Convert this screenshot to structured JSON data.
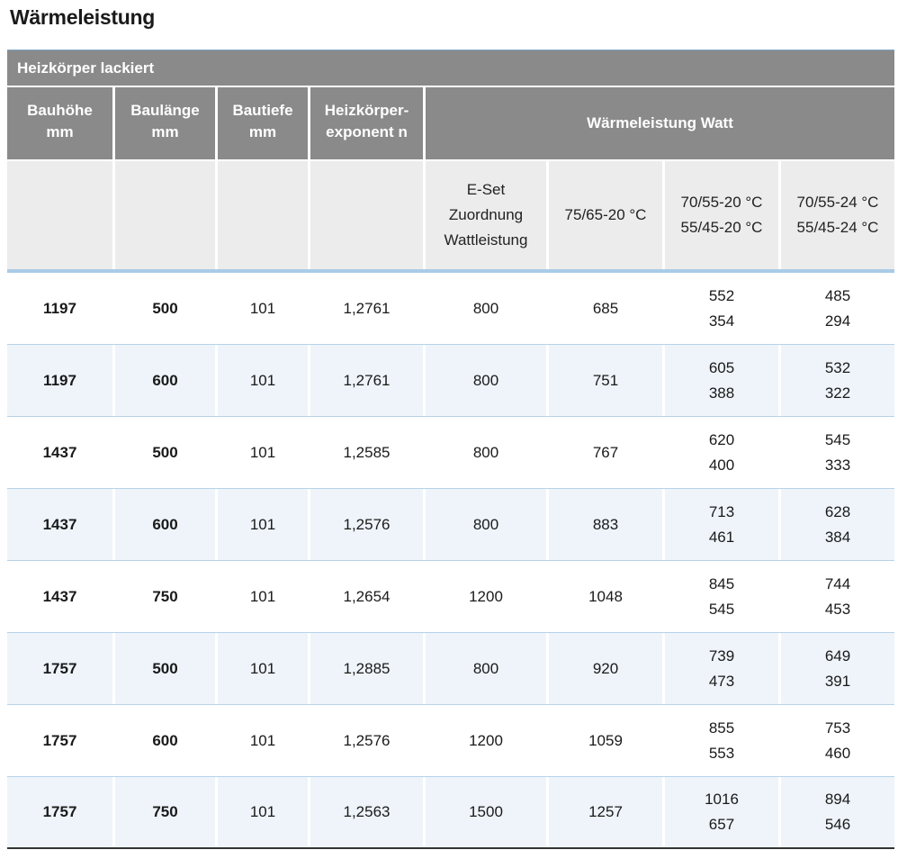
{
  "title": "Wärmeleistung",
  "section": "Heizkörper lackiert",
  "headers": {
    "bauhoehe": [
      "Bauhöhe",
      "mm"
    ],
    "baulaenge": [
      "Baulänge",
      "mm"
    ],
    "bautiefe": [
      "Bautiefe",
      "mm"
    ],
    "exponent": [
      "Heizkörper-",
      "exponent n"
    ],
    "waermeleistung": "Wärmeleistung Watt"
  },
  "subheaders": {
    "eset": [
      "E-Set",
      "Zuordnung",
      "Wattleistung"
    ],
    "t75": "75/65-20 °C",
    "t70_20": [
      "70/55-20 °C",
      "55/45-20 °C"
    ],
    "t70_24": [
      "70/55-24 °C",
      "55/45-24 °C"
    ]
  },
  "rows": [
    {
      "h": "1197",
      "l": "500",
      "t": "101",
      "n": "1,2761",
      "e": "800",
      "w75": "685",
      "w20": [
        "552",
        "354"
      ],
      "w24": [
        "485",
        "294"
      ]
    },
    {
      "h": "1197",
      "l": "600",
      "t": "101",
      "n": "1,2761",
      "e": "800",
      "w75": "751",
      "w20": [
        "605",
        "388"
      ],
      "w24": [
        "532",
        "322"
      ]
    },
    {
      "h": "1437",
      "l": "500",
      "t": "101",
      "n": "1,2585",
      "e": "800",
      "w75": "767",
      "w20": [
        "620",
        "400"
      ],
      "w24": [
        "545",
        "333"
      ]
    },
    {
      "h": "1437",
      "l": "600",
      "t": "101",
      "n": "1,2576",
      "e": "800",
      "w75": "883",
      "w20": [
        "713",
        "461"
      ],
      "w24": [
        "628",
        "384"
      ]
    },
    {
      "h": "1437",
      "l": "750",
      "t": "101",
      "n": "1,2654",
      "e": "1200",
      "w75": "1048",
      "w20": [
        "845",
        "545"
      ],
      "w24": [
        "744",
        "453"
      ]
    },
    {
      "h": "1757",
      "l": "500",
      "t": "101",
      "n": "1,2885",
      "e": "800",
      "w75": "920",
      "w20": [
        "739",
        "473"
      ],
      "w24": [
        "649",
        "391"
      ]
    },
    {
      "h": "1757",
      "l": "600",
      "t": "101",
      "n": "1,2576",
      "e": "1200",
      "w75": "1059",
      "w20": [
        "855",
        "553"
      ],
      "w24": [
        "753",
        "460"
      ]
    },
    {
      "h": "1757",
      "l": "750",
      "t": "101",
      "n": "1,2563",
      "e": "1500",
      "w75": "1257",
      "w20": [
        "1016",
        "657"
      ],
      "w24": [
        "894",
        "546"
      ]
    }
  ]
}
